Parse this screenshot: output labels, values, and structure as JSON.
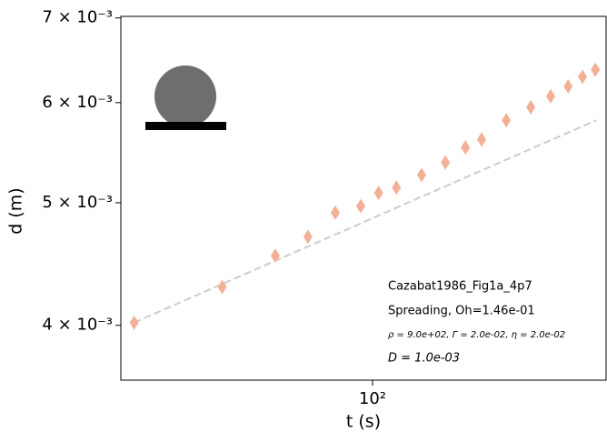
{
  "chart_data": {
    "type": "scatter",
    "log_x": true,
    "log_y": true,
    "x_label": "t (s)",
    "y_label": "d (m)",
    "xlim": [
      13.4,
      646
    ],
    "ylim": [
      0.00362,
      0.00702
    ],
    "xticks": [
      {
        "value": 100,
        "label": "10²"
      }
    ],
    "yticks": [
      {
        "value": 0.004,
        "label": "4 × 10⁻³"
      },
      {
        "value": 0.005,
        "label": "5 × 10⁻³"
      },
      {
        "value": 0.006,
        "label": "6 × 10⁻³"
      },
      {
        "value": 0.007,
        "label": "7 × 10⁻³"
      }
    ],
    "series": [
      {
        "color": "#f2b096",
        "x": [
          14.9,
          30.1,
          46.0,
          59.7,
          74.3,
          91.0,
          105,
          121,
          148,
          179,
          210,
          239,
          291,
          354,
          415,
          477,
          535,
          593
        ],
        "values": [
          0.00402,
          0.00429,
          0.00454,
          0.0047,
          0.00491,
          0.00497,
          0.00509,
          0.00514,
          0.00526,
          0.00538,
          0.00553,
          0.00561,
          0.00581,
          0.00595,
          0.00607,
          0.00618,
          0.00629,
          0.00637
        ]
      }
    ],
    "fit_line": {
      "color": "#cccccc",
      "x": [
        14.9,
        597
      ],
      "values": [
        0.00402,
        0.00581
      ]
    },
    "annotations": [
      "Cazabat1986_Fig1a_4p7",
      "Spreading, Oh=1.46e-01",
      "ρ = 9.0e+02, Γ = 2.0e-02, η = 2.0e-02",
      "D = 1.0e-03"
    ]
  }
}
